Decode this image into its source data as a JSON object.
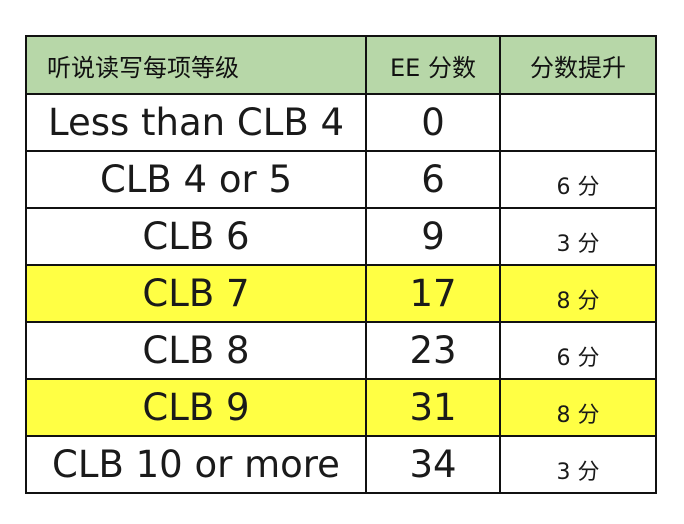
{
  "table": {
    "headers": {
      "level": "听说读写每项等级",
      "ee_score": "EE 分数",
      "gain": "分数提升"
    },
    "rows": [
      {
        "level": "Less than CLB 4",
        "ee": "0",
        "gain": "",
        "highlighted": false
      },
      {
        "level": "CLB 4 or 5",
        "ee": "6",
        "gain": "6 分",
        "highlighted": false
      },
      {
        "level": "CLB 6",
        "ee": "9",
        "gain": "3 分",
        "highlighted": false
      },
      {
        "level": "CLB 7",
        "ee": "17",
        "gain": "8 分",
        "highlighted": true
      },
      {
        "level": "CLB 8",
        "ee": "23",
        "gain": "6 分",
        "highlighted": false
      },
      {
        "level": "CLB 9",
        "ee": "31",
        "gain": "8 分",
        "highlighted": true
      },
      {
        "level": "CLB 10 or more",
        "ee": "34",
        "gain": "3 分",
        "highlighted": false
      }
    ]
  },
  "colors": {
    "header_background": "#b7d7a8",
    "highlight_background": "#ffff44",
    "border": "#111111"
  }
}
